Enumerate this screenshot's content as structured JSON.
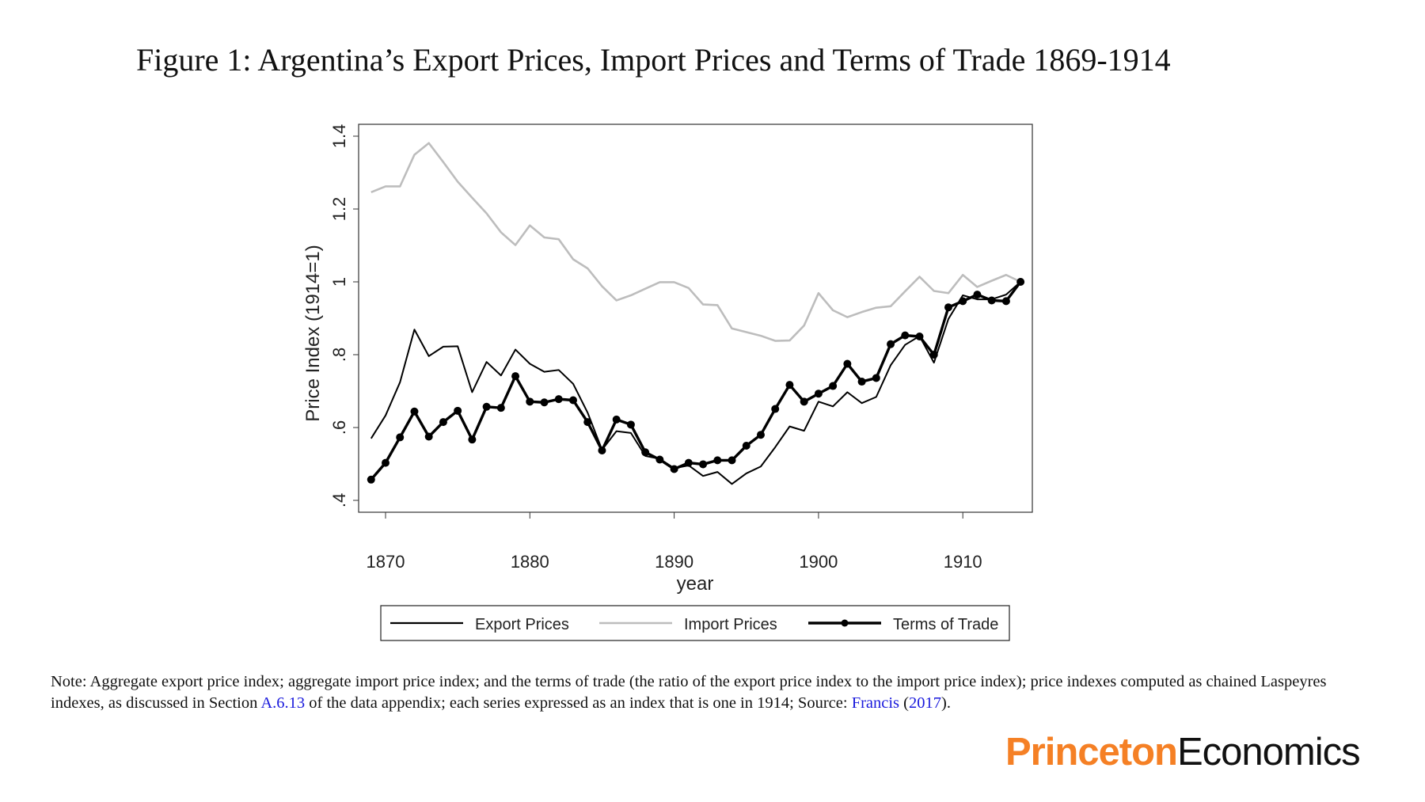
{
  "title": "Figure 1: Argentina’s Export Prices, Import Prices and Terms of Trade 1869-1914",
  "chart_data": {
    "type": "line",
    "xlabel": "year",
    "ylabel": "Price Index (1914=1)",
    "xlim": [
      1869,
      1914
    ],
    "ylim": [
      0.4,
      1.4
    ],
    "xticks": [
      "1870",
      "1880",
      "1890",
      "1900",
      "1910"
    ],
    "yticks": [
      ".4",
      ".6",
      ".8",
      "1",
      "1.2",
      "1.4"
    ],
    "grid": false,
    "legend_position": "bottom",
    "x": [
      1869,
      1870,
      1871,
      1872,
      1873,
      1874,
      1875,
      1876,
      1877,
      1878,
      1879,
      1880,
      1881,
      1882,
      1883,
      1884,
      1885,
      1886,
      1887,
      1888,
      1889,
      1890,
      1891,
      1892,
      1893,
      1894,
      1895,
      1896,
      1897,
      1898,
      1899,
      1900,
      1901,
      1902,
      1903,
      1904,
      1905,
      1906,
      1907,
      1908,
      1909,
      1910,
      1911,
      1912,
      1913,
      1914
    ],
    "series": [
      {
        "name": "Export Prices",
        "color": "#000000",
        "markers": false,
        "values": [
          0.57,
          0.633,
          0.724,
          0.869,
          0.796,
          0.822,
          0.823,
          0.697,
          0.78,
          0.743,
          0.814,
          0.775,
          0.753,
          0.758,
          0.72,
          0.641,
          0.539,
          0.59,
          0.585,
          0.522,
          0.514,
          0.488,
          0.496,
          0.467,
          0.478,
          0.445,
          0.474,
          0.493,
          0.546,
          0.603,
          0.591,
          0.671,
          0.658,
          0.697,
          0.667,
          0.684,
          0.771,
          0.827,
          0.851,
          0.778,
          0.898,
          0.963,
          0.952,
          0.952,
          0.965,
          1.0
        ]
      },
      {
        "name": "Import Prices",
        "color": "#bdbdbd",
        "markers": false,
        "values": [
          1.246,
          1.262,
          1.262,
          1.349,
          1.381,
          1.329,
          1.275,
          1.231,
          1.188,
          1.136,
          1.101,
          1.155,
          1.122,
          1.117,
          1.062,
          1.037,
          0.988,
          0.949,
          0.963,
          0.981,
          0.999,
          0.999,
          0.983,
          0.938,
          0.936,
          0.872,
          0.862,
          0.852,
          0.838,
          0.839,
          0.88,
          0.969,
          0.922,
          0.903,
          0.917,
          0.929,
          0.933,
          0.974,
          1.014,
          0.975,
          0.969,
          1.019,
          0.986,
          1.003,
          1.019,
          1.0
        ]
      },
      {
        "name": "Terms of Trade",
        "color": "#000000",
        "markers": true,
        "values": [
          0.457,
          0.503,
          0.573,
          0.644,
          0.575,
          0.615,
          0.646,
          0.567,
          0.657,
          0.654,
          0.741,
          0.671,
          0.669,
          0.678,
          0.675,
          0.615,
          0.537,
          0.622,
          0.608,
          0.532,
          0.512,
          0.486,
          0.503,
          0.499,
          0.51,
          0.51,
          0.55,
          0.58,
          0.651,
          0.717,
          0.671,
          0.693,
          0.714,
          0.775,
          0.726,
          0.736,
          0.829,
          0.853,
          0.85,
          0.8,
          0.93,
          0.947,
          0.965,
          0.949,
          0.947,
          1.0
        ]
      }
    ]
  },
  "note": {
    "prefix": "Note: Aggregate export price index; aggregate import price index; and the terms of trade (the ratio of the export price index to the import price index); price indexes computed as chained Laspeyres indexes, as discussed in Section ",
    "link_section": "A.6.13",
    "middle": " of the data appendix; each series expressed as an index that is one in 1914; Source: ",
    "link_author": "Francis",
    "open_paren": " (",
    "link_year": "2017",
    "suffix": ")."
  },
  "logo": {
    "part1": "Princeton",
    "part2": "Economics",
    "color": "#f58025"
  }
}
